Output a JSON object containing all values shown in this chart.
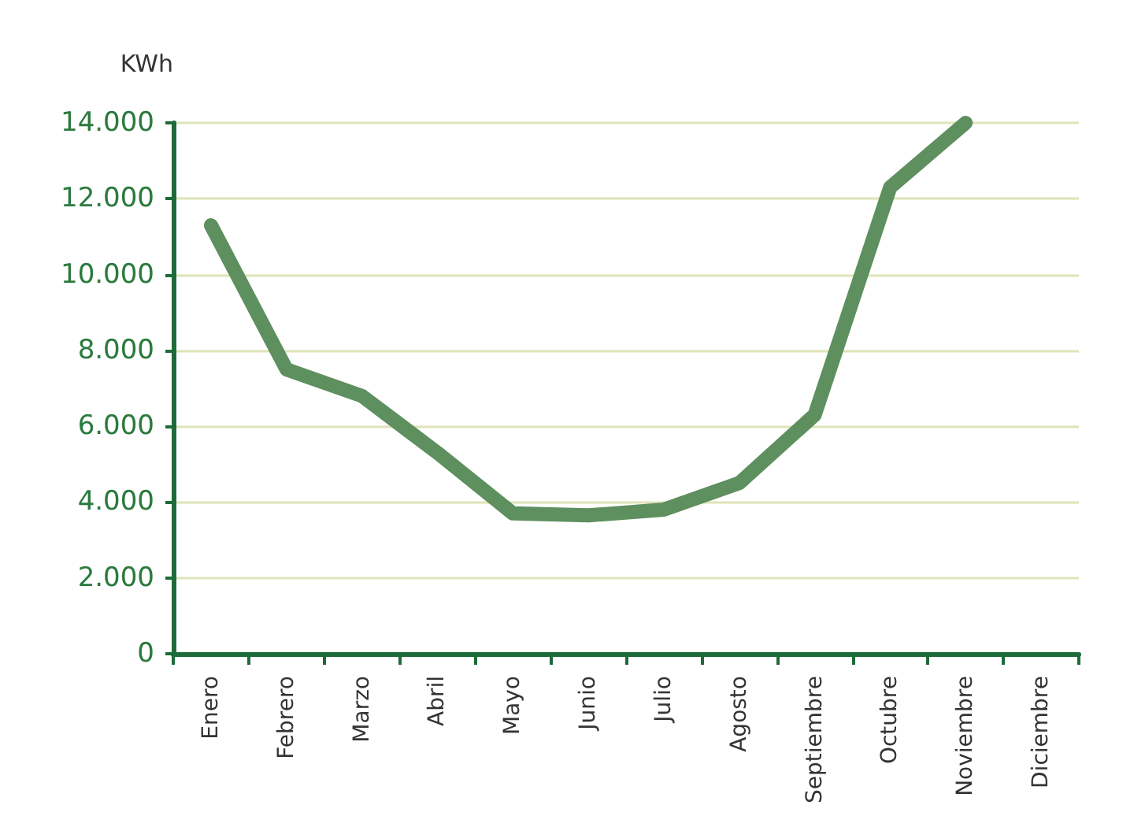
{
  "chart_data": {
    "type": "line",
    "ylabel": "KWh",
    "categories": [
      "Enero",
      "Febrero",
      "Marzo",
      "Abril",
      "Mayo",
      "Junio",
      "Julio",
      "Agosto",
      "Septiembre",
      "Octubre",
      "Noviembre",
      "Diciembre"
    ],
    "series": [
      {
        "color": "#5e8f5e",
        "values": [
          11300,
          7500,
          6800,
          5300,
          3700,
          3650,
          3800,
          4500,
          6300,
          12300,
          14000,
          null
        ]
      }
    ],
    "ylim": [
      0,
      14000
    ],
    "yticks": [
      0,
      {
        "value": 2000,
        "label": "2.000"
      },
      {
        "value": 4000,
        "label": "4.000"
      },
      {
        "value": 6000,
        "label": "6.000"
      },
      {
        "value": 8000,
        "label": "8.000"
      },
      {
        "value": 10000,
        "label": "10.000"
      },
      {
        "value": 12000,
        "label": "12.000"
      },
      {
        "value": 14000,
        "label": "14.000"
      }
    ],
    "grid": "y",
    "line_style": "solid"
  }
}
